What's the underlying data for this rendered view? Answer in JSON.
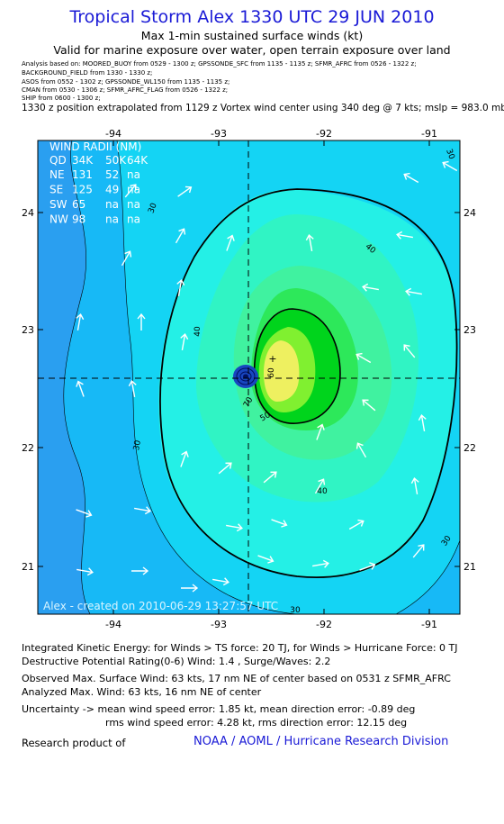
{
  "header": {
    "title": "Tropical Storm Alex 1330 UTC 29 JUN 2010",
    "subtitle": "Max 1-min sustained surface winds (kt)",
    "valid": "Valid for marine exposure over water, open terrain exposure over land"
  },
  "sources": [
    "Analysis based on:  MOORED_BUOY from 0529 - 1300 z;  GPSSONDE_SFC from 1135 - 1135 z;  SFMR_AFRC from 0526 - 1322 z;",
    "BACKGROUND_FIELD from 1330 - 1330 z;",
    "ASOS from 0552 - 1302 z;  GPSSONDE_WL150 from 1135 - 1135 z;",
    "CMAN from 0530 - 1306 z;  SFMR_AFRC_FLAG from 0526 - 1322 z;",
    "SHIP from 0600 - 1300 z;"
  ],
  "position_note": "1330 z position extrapolated from 1129 z Vortex wind center using 340 deg @ 7 kts; mslp = 983.0 mb",
  "map": {
    "x_ticks": [
      "-94",
      "-93",
      "-92",
      "-91"
    ],
    "y_ticks": [
      "24",
      "23",
      "22",
      "21"
    ],
    "contour_labels": [
      "30",
      "30",
      "30",
      "30",
      "30",
      "40",
      "40",
      "40",
      "50",
      "60",
      "70"
    ],
    "wind_radii": {
      "title": "WIND RADII (NM)",
      "header": [
        "QD",
        "34K",
        "50K",
        "64K"
      ],
      "rows": [
        [
          "NE",
          "131",
          "52",
          "na"
        ],
        [
          "SE",
          "125",
          "49",
          "na"
        ],
        [
          "SW",
          "65",
          "na",
          "na"
        ],
        [
          "NW",
          "98",
          "na",
          "na"
        ]
      ]
    },
    "credit": "Alex - created on 2010-06-29 13:27:57 UTC",
    "colors": {
      "c_bg": "#2a9ff0",
      "c_25": "#17b9f6",
      "c_30": "#14d4f4",
      "c_35": "#24f0e6",
      "c_40": "#30f4c4",
      "c_45": "#40f2a0",
      "c_50": "#2de85a",
      "c_55": "#00d41c",
      "c_60": "#80f030",
      "c_65": "#eef060",
      "eye": "#1846c0",
      "arrow": "#ffffff"
    }
  },
  "info": [
    "Integrated Kinetic Energy:  for Winds > TS force: 20 TJ,  for Winds > Hurricane Force: 0 TJ",
    "Destructive Potential Rating(0-6)   Wind: 1.4 , Surge/Waves: 2.2",
    "Observed Max. Surface Wind: 63 kts, 17 nm NE of center based on 0531 z SFMR_AFRC",
    "Analyzed Max. Wind: 63 kts, 16 nm NE of center",
    "Uncertainty -> mean wind speed error: 1.85 kt,   mean direction error:  -0.89 deg",
    "rms wind speed error: 4.28 kt,   rms direction error: 12.15 deg"
  ],
  "footer": {
    "research": "Research product of",
    "org": "NOAA / AOML / Hurricane Research Division"
  }
}
